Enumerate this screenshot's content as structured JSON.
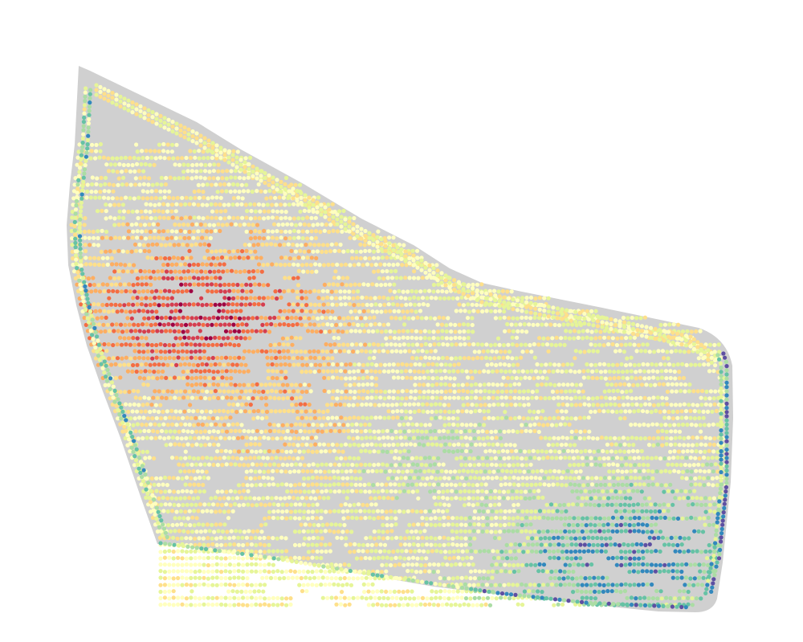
{
  "map": {
    "field_fill": "#d0d0d0",
    "palette": [
      "#9e0142",
      "#d53e4f",
      "#f46d43",
      "#fdae61",
      "#fee08b",
      "#ffffbf",
      "#e6f598",
      "#abdda4",
      "#66c2a5",
      "#3288bd",
      "#5e4fa2"
    ]
  }
}
